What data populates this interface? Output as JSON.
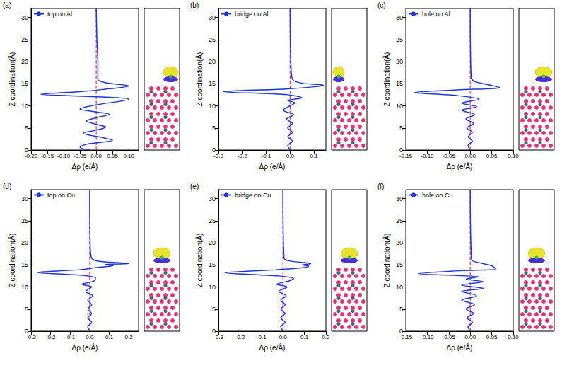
{
  "chart_data": [
    {
      "type": "line",
      "title": "(a)",
      "x_label": "Δρ (e/Å)",
      "y_label": "Z coordination(Å)",
      "xlim": [
        -0.2,
        0.13
      ],
      "xticks": [
        {
          "value": -0.2,
          "label": "-0.20"
        },
        {
          "value": -0.15,
          "label": "-0.15"
        },
        {
          "value": -0.1,
          "label": "-0.10"
        },
        {
          "value": -0.05,
          "label": "-0.05"
        },
        {
          "value": 0,
          "label": "0.00"
        },
        {
          "value": 0.05,
          "label": "0.05"
        },
        {
          "value": 0.1,
          "label": "0.10"
        }
      ],
      "ylim": [
        0,
        32
      ],
      "yticks": [
        0,
        5,
        10,
        15,
        20,
        25,
        30
      ],
      "grid": false,
      "legend": "upper left",
      "series": [
        {
          "name": "top on Al",
          "color": "#1f35d6",
          "line_style": "solid",
          "x": [
            -0.02,
            -0.05,
            -0.03,
            0.05,
            0.02,
            -0.04,
            0.0,
            0.03,
            0.0,
            -0.03,
            0.0,
            0.04,
            0.0,
            -0.05,
            0.0,
            0.1,
            0.02,
            -0.17,
            -0.05,
            0.02,
            0.1,
            0.03,
            0.005,
            0.005,
            0.002,
            0.0
          ],
          "values": [
            0,
            0.6,
            1.3,
            2.2,
            2.8,
            3.8,
            4.5,
            5.2,
            5.8,
            6.6,
            7.3,
            8.1,
            8.6,
            9.3,
            10.2,
            11.5,
            12.0,
            12.6,
            13.2,
            13.7,
            14.5,
            15.2,
            16,
            20,
            25,
            32
          ]
        },
        {
          "color": "#e8336b",
          "line_style": "dashed",
          "x": [
            0,
            0
          ],
          "values": [
            0,
            32
          ]
        }
      ]
    },
    {
      "type": "line",
      "title": "(b)",
      "x_label": "Δρ (e/Å)",
      "y_label": "Z coordination(Å)",
      "xlim": [
        -0.3,
        0.15
      ],
      "xticks": [
        -0.3,
        -0.2,
        -0.1,
        {
          "value": 0,
          "label": "0.0"
        },
        0.1
      ],
      "ylim": [
        0,
        32
      ],
      "yticks": [
        0,
        5,
        10,
        15,
        20,
        25,
        30
      ],
      "grid": false,
      "legend": "upper left",
      "series": [
        {
          "name": "bridge on Al",
          "color": "#1f35d6",
          "line_style": "solid",
          "x": [
            0.0,
            -0.01,
            0.01,
            -0.01,
            0.01,
            -0.01,
            0.01,
            -0.015,
            0.015,
            -0.03,
            0.0,
            0.02,
            -0.01,
            0.05,
            -0.01,
            -0.28,
            -0.02,
            0.1,
            0.14,
            0.05,
            0.01,
            0.003,
            0.0
          ],
          "values": [
            0,
            1,
            2,
            3,
            4,
            5,
            6,
            7,
            8,
            9,
            10,
            10.7,
            11.2,
            11.8,
            12.5,
            13.2,
            13.8,
            14.3,
            14.7,
            15.1,
            16,
            20,
            32
          ]
        },
        {
          "color": "#e8336b",
          "line_style": "dashed",
          "x": [
            0,
            0
          ],
          "values": [
            0,
            32
          ]
        }
      ]
    },
    {
      "type": "line",
      "title": "(c)",
      "x_label": "Δρ (e/Å)",
      "y_label": "Z coordination(Å)",
      "xlim": [
        -0.15,
        0.1
      ],
      "xticks": [
        {
          "value": -0.15,
          "label": "-0.15"
        },
        {
          "value": -0.1,
          "label": "-0.10"
        },
        {
          "value": -0.05,
          "label": "-0.05"
        },
        {
          "value": 0,
          "label": "0.00"
        },
        {
          "value": 0.05,
          "label": "0.05"
        },
        {
          "value": 0.1,
          "label": "0.10"
        }
      ],
      "ylim": [
        0,
        32
      ],
      "yticks": [
        0,
        5,
        10,
        15,
        20,
        25,
        30
      ],
      "grid": false,
      "legend": "upper left",
      "series": [
        {
          "name": "hole on Al",
          "color": "#1f35d6",
          "line_style": "solid",
          "x": [
            0.0,
            -0.005,
            0.005,
            -0.005,
            0.005,
            -0.008,
            0.008,
            -0.01,
            0.01,
            -0.02,
            0.015,
            -0.02,
            0.02,
            -0.03,
            -0.13,
            -0.03,
            0.07,
            0.04,
            0.01,
            0.002,
            0.0
          ],
          "values": [
            0,
            1,
            2,
            3,
            4,
            5,
            6,
            7,
            8,
            9,
            9.8,
            10.6,
            11.5,
            12.3,
            13,
            13.6,
            14.1,
            14.8,
            15.5,
            16.5,
            32
          ]
        },
        {
          "color": "#e8336b",
          "line_style": "dashed",
          "x": [
            0,
            0
          ],
          "values": [
            0,
            32
          ]
        }
      ]
    },
    {
      "type": "line",
      "title": "(d)",
      "x_label": "Δρ (e/Å)",
      "y_label": "Z coordination(Å)",
      "xlim": [
        -0.3,
        0.25
      ],
      "xticks": [
        -0.3,
        -0.2,
        -0.1,
        {
          "value": 0,
          "label": "0.0"
        },
        0.1,
        0.2
      ],
      "ylim": [
        0,
        32
      ],
      "yticks": [
        0,
        5,
        10,
        15,
        20,
        25,
        30
      ],
      "grid": false,
      "legend": "upper left",
      "series": [
        {
          "name": "top on Cu",
          "color": "#1f35d6",
          "line_style": "solid",
          "x": [
            0.0,
            -0.01,
            0.01,
            -0.01,
            0.01,
            -0.01,
            0.01,
            -0.01,
            0.015,
            -0.02,
            0.01,
            -0.04,
            0.02,
            0.03,
            -0.03,
            -0.27,
            -0.05,
            0.05,
            0.12,
            0.08,
            0.2,
            0.05,
            0.01,
            0.002,
            0.0
          ],
          "values": [
            0,
            1,
            2,
            3,
            4,
            5,
            6,
            7,
            8,
            9,
            10,
            10.6,
            11.3,
            12,
            12.6,
            13.3,
            13.9,
            14.5,
            14.8,
            15.1,
            15.3,
            15.8,
            16.5,
            20,
            32
          ]
        },
        {
          "color": "#e8336b",
          "line_style": "dashed",
          "x": [
            0,
            0
          ],
          "values": [
            0,
            32
          ]
        }
      ]
    },
    {
      "type": "line",
      "title": "(e)",
      "x_label": "Δρ (e/Å)",
      "y_label": "Z coordination(Å)",
      "xlim": [
        -0.3,
        0.2
      ],
      "xticks": [
        -0.3,
        -0.2,
        -0.1,
        {
          "value": 0,
          "label": "0.0"
        },
        0.1,
        0.2
      ],
      "ylim": [
        0,
        32
      ],
      "yticks": [
        0,
        5,
        10,
        15,
        20,
        25,
        30
      ],
      "grid": false,
      "legend": "upper left",
      "series": [
        {
          "name": "bridge on Cu",
          "color": "#1f35d6",
          "line_style": "solid",
          "x": [
            0.0,
            -0.01,
            0.01,
            -0.01,
            0.01,
            -0.01,
            0.01,
            -0.01,
            0.015,
            -0.02,
            0.02,
            -0.03,
            0.03,
            0.05,
            -0.02,
            -0.27,
            -0.03,
            0.1,
            0.12,
            0.09,
            0.13,
            0.03,
            0.005,
            0.0
          ],
          "values": [
            0,
            1,
            2,
            3,
            4,
            5,
            6,
            7,
            8,
            9,
            10,
            10.6,
            11.4,
            11.9,
            12.5,
            13.2,
            13.9,
            14.4,
            14.7,
            15.0,
            15.3,
            15.9,
            16.5,
            32
          ]
        },
        {
          "color": "#e8336b",
          "line_style": "dashed",
          "x": [
            0,
            0
          ],
          "values": [
            0,
            32
          ]
        }
      ]
    },
    {
      "type": "line",
      "title": "(f)",
      "x_label": "Δρ (e/Å)",
      "y_label": "Z coordination(Å)",
      "xlim": [
        -0.15,
        0.1
      ],
      "xticks": [
        {
          "value": -0.15,
          "label": "-0.15"
        },
        {
          "value": -0.1,
          "label": "-0.10"
        },
        {
          "value": -0.05,
          "label": "-0.05"
        },
        {
          "value": 0,
          "label": "0.00"
        },
        {
          "value": 0.05,
          "label": "0.05"
        },
        {
          "value": 0.1,
          "label": "0.10"
        }
      ],
      "ylim": [
        0,
        32
      ],
      "yticks": [
        0,
        5,
        10,
        15,
        20,
        25,
        30
      ],
      "grid": false,
      "legend": "upper left",
      "series": [
        {
          "name": "hole on Cu",
          "color": "#1f35d6",
          "line_style": "solid",
          "x": [
            0.0,
            -0.005,
            0.005,
            -0.008,
            0.008,
            -0.01,
            0.01,
            -0.02,
            0.015,
            -0.02,
            0.03,
            -0.02,
            0.03,
            -0.01,
            0.02,
            -0.12,
            -0.02,
            0.06,
            0.05,
            0.02,
            0.003,
            0.0
          ],
          "values": [
            0,
            1,
            2,
            3,
            4,
            5,
            6,
            7,
            8,
            9,
            9.7,
            10.4,
            11.2,
            11.8,
            12.3,
            13,
            13.7,
            14.1,
            14.8,
            15.5,
            16.2,
            32
          ]
        },
        {
          "color": "#e8336b",
          "line_style": "dashed",
          "x": [
            0,
            0
          ],
          "values": [
            0,
            32
          ]
        }
      ]
    }
  ]
}
